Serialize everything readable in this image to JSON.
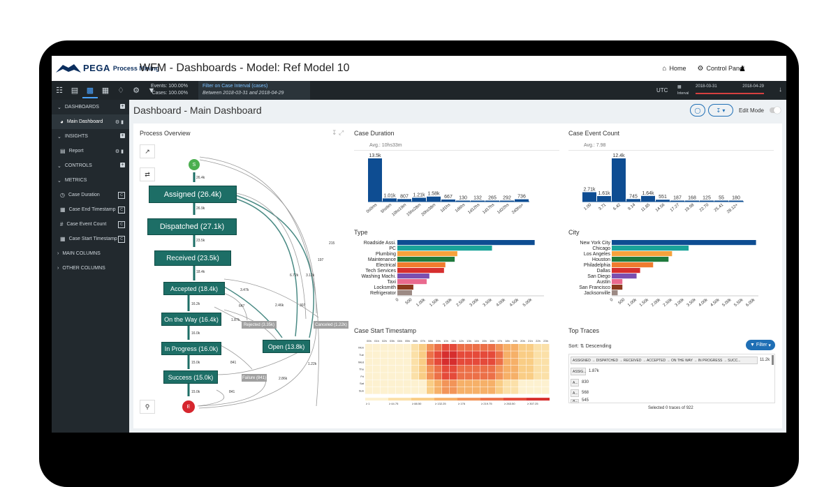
{
  "app": {
    "brand": "PEGA",
    "product": "Process Mining",
    "title": "WFM - Dashboards - Model: Ref Model 10",
    "home_label": "Home",
    "control_panel_label": "Control Panel"
  },
  "toolbar": {
    "events_label": "Events: 100.00%",
    "cases_label": "Cases: 100.00%",
    "filter_title": "Filter on Case Interval (cases)",
    "filter_desc": "Between 2018-03-31 and 2018-04-29",
    "timezone": "UTC",
    "interval_label": "Interval",
    "date_start": "2018-03-31",
    "date_end": "2018-04-29"
  },
  "sidebar": {
    "dashboards": "DASHBOARDS",
    "main_dashboard": "Main Dashboard",
    "insights": "INSIGHTS",
    "report": "Report",
    "controls": "CONTROLS",
    "metrics": "METRICS",
    "metric_items": [
      "Case Duration",
      "Case End Timestamp",
      "Case Event Count",
      "Case Start Timestamp"
    ],
    "main_columns": "MAIN COLUMNS",
    "other_columns": "OTHER COLUMNS"
  },
  "page": {
    "title": "Dashboard - Main Dashboard",
    "edit_mode": "Edit Mode"
  },
  "process_overview": {
    "title": "Process Overview",
    "start": "S",
    "end": "E",
    "nodes": {
      "assigned": "Assigned  (26.4k)",
      "dispatched": "Dispatched  (27.1k)",
      "received": "Received  (23.5k)",
      "accepted": "Accepted  (18.4k)",
      "ontheway": "On the Way  (16.4k)",
      "inprogress": "In Progress  (16.0k)",
      "success": "Success  (15.0k)",
      "open": "Open  (13.8k)",
      "rejected": "Rejected  (3.35k)",
      "canceled": "Canceled  (1.22k)",
      "failure": "Failure  (841)"
    },
    "edges": [
      "26.4k",
      "26.9k",
      "23.5k",
      "18.4k",
      "16.2k",
      "16.0k",
      "15.0k",
      "15.0k",
      "3.47k",
      "647",
      "1.87k",
      "2.46k",
      "307",
      "3.12k",
      "6.72k",
      "197",
      "215",
      "841",
      "841",
      "1.22k",
      "2.86k"
    ]
  },
  "case_duration": {
    "title": "Case Duration",
    "avg": "Avg.: 10hs33m"
  },
  "case_event_count": {
    "title": "Case Event Count",
    "avg": "Avg.: 7.98"
  },
  "type_chart": {
    "title": "Type"
  },
  "city_chart": {
    "title": "City"
  },
  "timestamp_chart": {
    "title": "Case Start Timestamp",
    "hours": [
      "00h",
      "01h",
      "02h",
      "03h",
      "04h",
      "05h",
      "06h",
      "07h",
      "08h",
      "09h",
      "10h",
      "11h",
      "12h",
      "13h",
      "14h",
      "15h",
      "16h",
      "17h",
      "18h",
      "19h",
      "20h",
      "21h",
      "22h",
      "23h"
    ],
    "days": [
      "Mon",
      "Tue",
      "Wed",
      "Thu",
      "Fri",
      "Sat",
      "Sun"
    ],
    "legend": [
      "≥ 1",
      "≥ 44.75",
      "≥ 88.50",
      "≥ 132.25",
      "≥ 176",
      "≥ 219.75",
      "≥ 263.50",
      "≥ 307.25"
    ],
    "legend_colors": [
      "#fdf1d0",
      "#fbe0a8",
      "#f9cd85",
      "#f6b068",
      "#f29458",
      "#ec7048",
      "#e54a3a",
      "#d62e2e"
    ]
  },
  "top_traces": {
    "title": "Top Traces",
    "sort_label": "Sort:",
    "sort_value": "Descending",
    "filter_label": "Filter",
    "traces": [
      {
        "label": "ASSIGNED → DISPATCHED → RECEIVED → ACCEPTED → ON THE WAY → IN PROGRESS → SUCC...",
        "count": "11.2k"
      },
      {
        "label": "ASSIG...",
        "count": "1.87k"
      },
      {
        "label": "A...",
        "count": "830"
      },
      {
        "label": "A...",
        "count": "568"
      },
      {
        "label": "A...",
        "count": "545"
      }
    ],
    "selected": "Selected 0 traces of 922"
  },
  "chart_data": [
    {
      "type": "bar",
      "title": "Case Duration",
      "categories": [
        "0s0ms",
        "5hs9m",
        "10hs19m",
        "15hs28m",
        "20hs38m",
        "1d1hs",
        "1d6hs",
        "1d12hs",
        "1d17hs",
        "1d22hs",
        "2d3hs+"
      ],
      "values": [
        13500,
        1010,
        807,
        1210,
        1580,
        667,
        130,
        132,
        265,
        292,
        736
      ],
      "data_labels": [
        "13.5k",
        "1.01k",
        "807",
        "1.21k",
        "1.58k",
        "667",
        "130",
        "132",
        "265",
        "292",
        "736"
      ],
      "color": "#0e4d92"
    },
    {
      "type": "bar",
      "title": "Case Event Count",
      "categories": [
        "1.00",
        "3.71",
        "6.42",
        "9.14",
        "11.85",
        "14.56",
        "17.27",
        "19.98",
        "22.70",
        "25.41",
        "28.12+"
      ],
      "values": [
        2710,
        1610,
        12400,
        745,
        1640,
        551,
        187,
        168,
        125,
        55,
        180
      ],
      "data_labels": [
        "2.71k",
        "1.61k",
        "12.4k",
        "745",
        "1.64k",
        "551",
        "187",
        "168",
        "125",
        "55",
        "180"
      ],
      "color": "#0e4d92"
    },
    {
      "type": "bar",
      "orientation": "horizontal",
      "title": "Type",
      "categories": [
        "Roadside Assi.",
        "PC",
        "Plumbing",
        "Maintenance",
        "Electrical",
        "Tech Services",
        "Washing Machi.",
        "Taxi",
        "Locksmith",
        "Refrigerator"
      ],
      "values": [
        5150,
        3550,
        2250,
        2150,
        1800,
        1750,
        1200,
        1100,
        600,
        550
      ],
      "colors": [
        "#0e4d92",
        "#1aa39a",
        "#f6a23c",
        "#1e7a3c",
        "#f07b2e",
        "#d62e2e",
        "#7b4fb0",
        "#e96a8e",
        "#8b3a1e",
        "#9c8a84"
      ],
      "ticks": [
        "0",
        "500",
        "1.00k",
        "1.50k",
        "2.00k",
        "2.50k",
        "3.00k",
        "3.50k",
        "4.00k",
        "4.50k",
        "5.00k"
      ],
      "xlim": [
        0,
        5500
      ]
    },
    {
      "type": "bar",
      "orientation": "horizontal",
      "title": "City",
      "categories": [
        "New York City",
        "Chicago",
        "Los Angeles",
        "Houston",
        "Philadelphia",
        "Dallas",
        "San Diego",
        "Austin",
        "San Francisco",
        "Jacksonville"
      ],
      "values": [
        6100,
        3250,
        2550,
        2400,
        1750,
        1200,
        1050,
        450,
        450,
        250
      ],
      "colors": [
        "#0e4d92",
        "#1aa39a",
        "#f6a23c",
        "#1e7a3c",
        "#f07b2e",
        "#d62e2e",
        "#7b4fb0",
        "#e96a8e",
        "#8b3a1e",
        "#9c8a84"
      ],
      "ticks": [
        "0",
        "500",
        "1.00k",
        "1.50k",
        "2.00k",
        "2.50k",
        "3.00k",
        "3.50k",
        "4.00k",
        "4.50k",
        "5.00k",
        "5.50k",
        "6.00k"
      ],
      "xlim": [
        0,
        6200
      ]
    }
  ]
}
